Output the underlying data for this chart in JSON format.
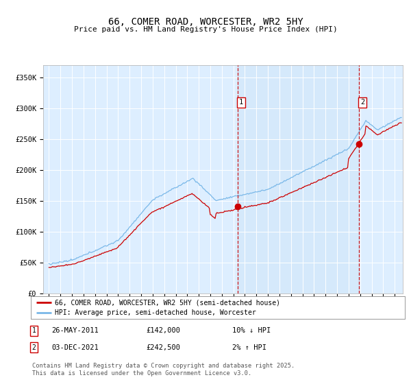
{
  "title": "66, COMER ROAD, WORCESTER, WR2 5HY",
  "subtitle": "Price paid vs. HM Land Registry's House Price Index (HPI)",
  "background_color": "#ffffff",
  "plot_bg_color": "#ddeeff",
  "hpi_color": "#7ab8e8",
  "price_color": "#cc0000",
  "shade_color": "#c8dff5",
  "ylabel_ticks": [
    "£0",
    "£50K",
    "£100K",
    "£150K",
    "£200K",
    "£250K",
    "£300K",
    "£350K"
  ],
  "ytick_vals": [
    0,
    50000,
    100000,
    150000,
    200000,
    250000,
    300000,
    350000
  ],
  "ylim": [
    0,
    370000
  ],
  "transaction1": {
    "label": "1",
    "date": "26-MAY-2011",
    "price": 142000,
    "hpi_pct": "10% ↓ HPI",
    "x_year": 2011.4
  },
  "transaction2": {
    "label": "2",
    "date": "03-DEC-2021",
    "price": 242500,
    "hpi_pct": "2% ↑ HPI",
    "x_year": 2021.92
  },
  "legend_line1": "66, COMER ROAD, WORCESTER, WR2 5HY (semi-detached house)",
  "legend_line2": "HPI: Average price, semi-detached house, Worcester",
  "footer": "Contains HM Land Registry data © Crown copyright and database right 2025.\nThis data is licensed under the Open Government Licence v3.0.",
  "xlim_start": 1994.5,
  "xlim_end": 2025.7
}
